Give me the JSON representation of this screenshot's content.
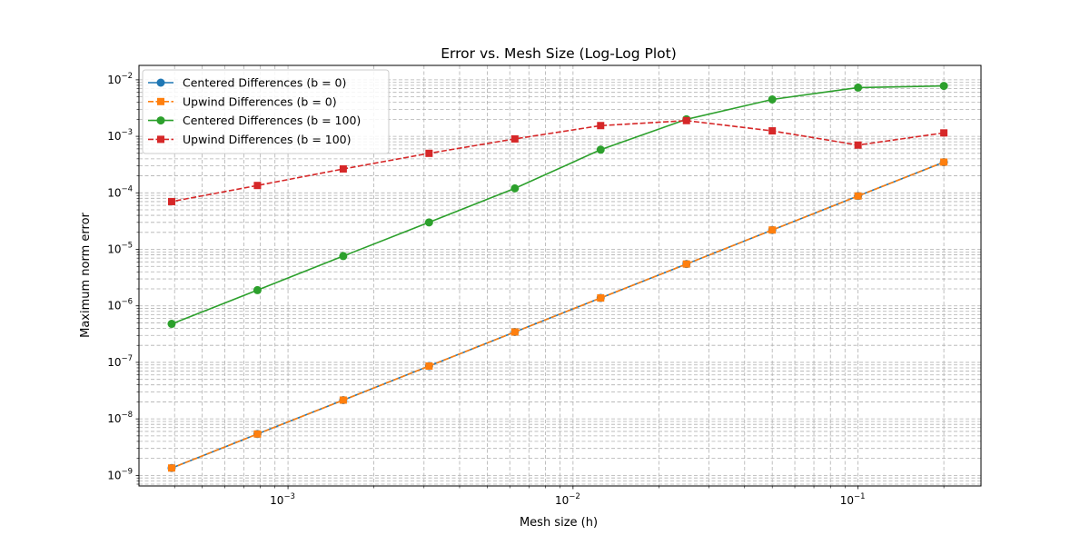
{
  "chart_data": {
    "type": "line",
    "title": "Error vs. Mesh Size (Log-Log Plot)",
    "xlabel": "Mesh size (h)",
    "ylabel": "Maximum norm error",
    "xscale": "log",
    "yscale": "log",
    "xlim": [
      0.0003,
      0.27
    ],
    "ylim": [
      6.5e-10,
      0.018
    ],
    "x_major_ticks": [
      {
        "value": 0.001,
        "base": "10",
        "exp": "−3"
      },
      {
        "value": 0.01,
        "base": "10",
        "exp": "−2"
      },
      {
        "value": 0.1,
        "base": "10",
        "exp": "−1"
      }
    ],
    "y_major_ticks": [
      {
        "value": 1e-09,
        "base": "10",
        "exp": "−9"
      },
      {
        "value": 1e-08,
        "base": "10",
        "exp": "−8"
      },
      {
        "value": 1e-07,
        "base": "10",
        "exp": "−7"
      },
      {
        "value": 1e-06,
        "base": "10",
        "exp": "−6"
      },
      {
        "value": 1e-05,
        "base": "10",
        "exp": "−5"
      },
      {
        "value": 0.0001,
        "base": "10",
        "exp": "−4"
      },
      {
        "value": 0.001,
        "base": "10",
        "exp": "−3"
      },
      {
        "value": 0.01,
        "base": "10",
        "exp": "−2"
      }
    ],
    "grid": "both",
    "legend_position": "top-left",
    "x": [
      0.2,
      0.1,
      0.05,
      0.025,
      0.0125,
      0.00625,
      0.003125,
      0.0015625,
      0.00078125,
      0.000390625
    ],
    "series": [
      {
        "name": "Centered Differences (b = 0)",
        "color": "#1f77b4",
        "marker": "circle",
        "linestyle": "solid",
        "values": [
          0.00035,
          8.8e-05,
          2.2e-05,
          5.5e-06,
          1.38e-06,
          3.45e-07,
          8.6e-08,
          2.15e-08,
          5.4e-09,
          1.35e-09
        ]
      },
      {
        "name": "Upwind Differences (b = 0)",
        "color": "#ff7f0e",
        "marker": "square",
        "linestyle": "dashed",
        "values": [
          0.00035,
          8.8e-05,
          2.2e-05,
          5.5e-06,
          1.38e-06,
          3.45e-07,
          8.6e-08,
          2.15e-08,
          5.4e-09,
          1.35e-09
        ]
      },
      {
        "name": "Centered Differences (b = 100)",
        "color": "#2ca02c",
        "marker": "circle",
        "linestyle": "solid",
        "values": [
          0.0078,
          0.0073,
          0.0045,
          0.002,
          0.00058,
          0.00012,
          3e-05,
          7.6e-06,
          1.9e-06,
          4.8e-07
        ]
      },
      {
        "name": "Upwind Differences (b = 100)",
        "color": "#d62728",
        "marker": "square",
        "linestyle": "dashed",
        "values": [
          0.00115,
          0.0007,
          0.00125,
          0.0019,
          0.00155,
          0.0009,
          0.0005,
          0.000265,
          0.000135,
          7e-05
        ]
      }
    ]
  }
}
